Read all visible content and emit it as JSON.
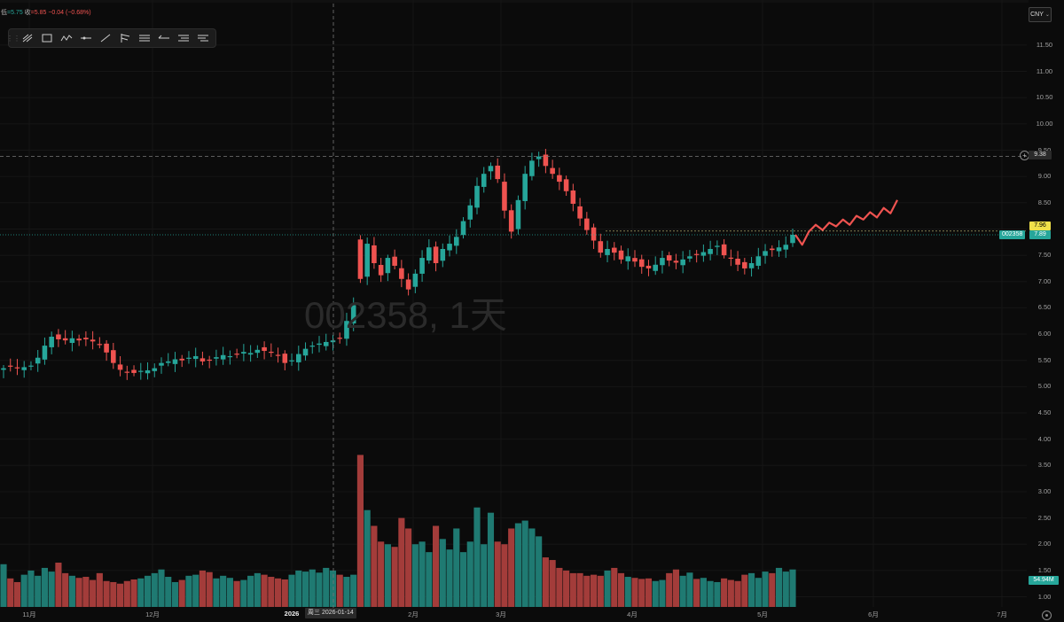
{
  "header": {
    "low_label": "低",
    "low_value": "=5.75",
    "close_label": "收",
    "close_value": "=5.85",
    "change": "−0.04 (−0.68%)"
  },
  "currency": "CNY",
  "watermark": "002358, 1天",
  "price_tags": {
    "crosshair_price": "9.38",
    "level_price": "7.96",
    "symbol": "002358",
    "last_price": "7.89",
    "last_volume": "54.94M",
    "crosshair_date": "周三 2026-01-14"
  },
  "toolbar": {
    "tools": [
      "draw-line-icon",
      "rectangle-icon",
      "path-icon",
      "horizontal-ray-icon",
      "trend-line-icon",
      "pitchfork-icon",
      "parallel-channel-icon",
      "arrow-left-icon",
      "long-position-icon",
      "short-position-icon"
    ]
  },
  "colors": {
    "up": "#26a69a",
    "down": "#ef5350",
    "vol_up": "#1f7a72",
    "vol_down": "#a33c3a",
    "projection": "#ef5350"
  },
  "chart_data": {
    "type": "candlestick",
    "symbol": "002358",
    "interval": "1天",
    "y_ticks": [
      "11.50",
      "11.00",
      "10.50",
      "10.00",
      "9.50",
      "9.00",
      "8.50",
      "8.00",
      "7.50",
      "7.00",
      "6.50",
      "6.00",
      "5.50",
      "5.00",
      "4.50",
      "4.00",
      "3.50",
      "3.00",
      "2.50",
      "2.00",
      "1.50",
      "1.00"
    ],
    "x_ticks": [
      "11月",
      "12月",
      "2026",
      "2月",
      "3月",
      "4月",
      "5月",
      "6月",
      "7月"
    ],
    "close_prices": [
      5.35,
      5.38,
      5.36,
      5.37,
      5.4,
      5.55,
      5.78,
      5.95,
      5.9,
      5.88,
      5.92,
      5.88,
      5.9,
      5.86,
      5.8,
      5.65,
      5.45,
      5.32,
      5.28,
      5.26,
      5.3,
      5.31,
      5.35,
      5.45,
      5.48,
      5.52,
      5.5,
      5.55,
      5.58,
      5.48,
      5.5,
      5.56,
      5.6,
      5.58,
      5.62,
      5.66,
      5.64,
      5.7,
      5.68,
      5.65,
      5.6,
      5.45,
      5.5,
      5.62,
      5.72,
      5.78,
      5.82,
      5.85,
      5.88,
      5.92,
      6.25,
      6.55,
      7.05,
      7.72,
      7.35,
      7.12,
      7.45,
      7.3,
      7.05,
      6.85,
      7.15,
      7.45,
      7.65,
      7.35,
      7.62,
      7.72,
      7.85,
      8.15,
      8.45,
      8.82,
      9.05,
      9.2,
      8.95,
      8.35,
      7.95,
      8.55,
      9.05,
      9.3,
      9.38,
      9.2,
      9.05,
      8.9,
      8.72,
      8.48,
      8.2,
      7.98,
      7.78,
      7.55,
      7.62,
      7.55,
      7.42,
      7.48,
      7.38,
      7.28,
      7.25,
      7.32,
      7.45,
      7.4,
      7.36,
      7.42,
      7.48,
      7.52,
      7.56,
      7.62,
      7.68,
      7.5,
      7.45,
      7.32,
      7.25,
      7.35,
      7.48,
      7.58,
      7.6,
      7.65,
      7.7,
      7.89
    ],
    "volumes": [
      1.62,
      1.35,
      1.28,
      1.42,
      1.5,
      1.4,
      1.55,
      1.48,
      1.65,
      1.45,
      1.4,
      1.36,
      1.38,
      1.32,
      1.45,
      1.3,
      1.28,
      1.25,
      1.3,
      1.33,
      1.35,
      1.4,
      1.45,
      1.52,
      1.38,
      1.28,
      1.32,
      1.4,
      1.42,
      1.5,
      1.47,
      1.35,
      1.4,
      1.36,
      1.3,
      1.32,
      1.4,
      1.45,
      1.42,
      1.38,
      1.35,
      1.33,
      1.42,
      1.5,
      1.48,
      1.52,
      1.46,
      1.55,
      1.5,
      1.42,
      1.38,
      1.42,
      3.7,
      2.65,
      2.35,
      2.05,
      2.0,
      1.95,
      2.5,
      2.3,
      2.0,
      2.05,
      1.85,
      2.35,
      2.1,
      1.9,
      2.3,
      1.85,
      2.05,
      2.7,
      2.0,
      2.6,
      2.05,
      2.0,
      2.3,
      2.4,
      2.45,
      2.3,
      2.15,
      1.75,
      1.7,
      1.55,
      1.5,
      1.45,
      1.45,
      1.4,
      1.42,
      1.4,
      1.5,
      1.55,
      1.45,
      1.38,
      1.36,
      1.34,
      1.35,
      1.3,
      1.32,
      1.45,
      1.52,
      1.4,
      1.46,
      1.34,
      1.36,
      1.3,
      1.28,
      1.35,
      1.32,
      1.3,
      1.42,
      1.45,
      1.36,
      1.48,
      1.45,
      1.55,
      1.48,
      1.52
    ],
    "projection": [
      7.89,
      7.7,
      7.95,
      8.08,
      7.98,
      8.12,
      8.05,
      8.18,
      8.08,
      8.25,
      8.18,
      8.32,
      8.22,
      8.4,
      8.3,
      8.55
    ]
  }
}
